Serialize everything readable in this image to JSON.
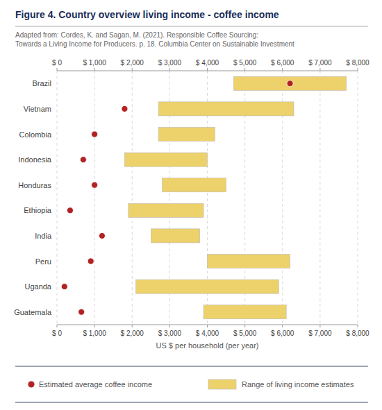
{
  "chart_data": {
    "type": "range_bar",
    "orientation": "horizontal",
    "title": "Figure 4. Country overview living income - coffee income",
    "subtitle": [
      "Adapted from: Cordes, K. and Sagan, M. (2021). Responsible Coffee Sourcing:",
      "Towards a Living Income for Producers. p. 18. Columbia Center on Sustainable Investment"
    ],
    "xlabel": "US $ per household (per year)",
    "categories": [
      "Brazil",
      "Vietnam",
      "Colombia",
      "Indonesia",
      "Honduras",
      "Ethiopia",
      "India",
      "Peru",
      "Uganda",
      "Guatemala"
    ],
    "xlim": [
      0,
      8000
    ],
    "xticks": [
      {
        "value": 0,
        "label": "$ 0"
      },
      {
        "value": 1000,
        "label": "$ 1,000"
      },
      {
        "value": 2000,
        "label": "$ 2,000"
      },
      {
        "value": 3000,
        "label": "$ 3,000"
      },
      {
        "value": 4000,
        "label": "$ 4,000"
      },
      {
        "value": 5000,
        "label": "$ 5,000"
      },
      {
        "value": 6000,
        "label": "$ 6,000"
      },
      {
        "value": 7000,
        "label": "$ 7,000"
      },
      {
        "value": 8000,
        "label": "$ 8,000"
      }
    ],
    "grid": true,
    "legend": "bottom",
    "series": [
      {
        "name": "Range of living income estimates",
        "type": "range",
        "color": "#edd16b",
        "starts": [
          4700,
          2700,
          2700,
          1800,
          2800,
          1900,
          2500,
          4000,
          2100,
          3900
        ],
        "ends": [
          7700,
          6300,
          4200,
          4000,
          4500,
          3900,
          3800,
          6200,
          5900,
          6100
        ]
      },
      {
        "name": "Estimated average coffee income",
        "type": "scatter",
        "marker": "circle",
        "color": "#b22222",
        "values": [
          6200,
          1800,
          1000,
          700,
          1000,
          350,
          1200,
          900,
          200,
          650
        ]
      }
    ]
  }
}
